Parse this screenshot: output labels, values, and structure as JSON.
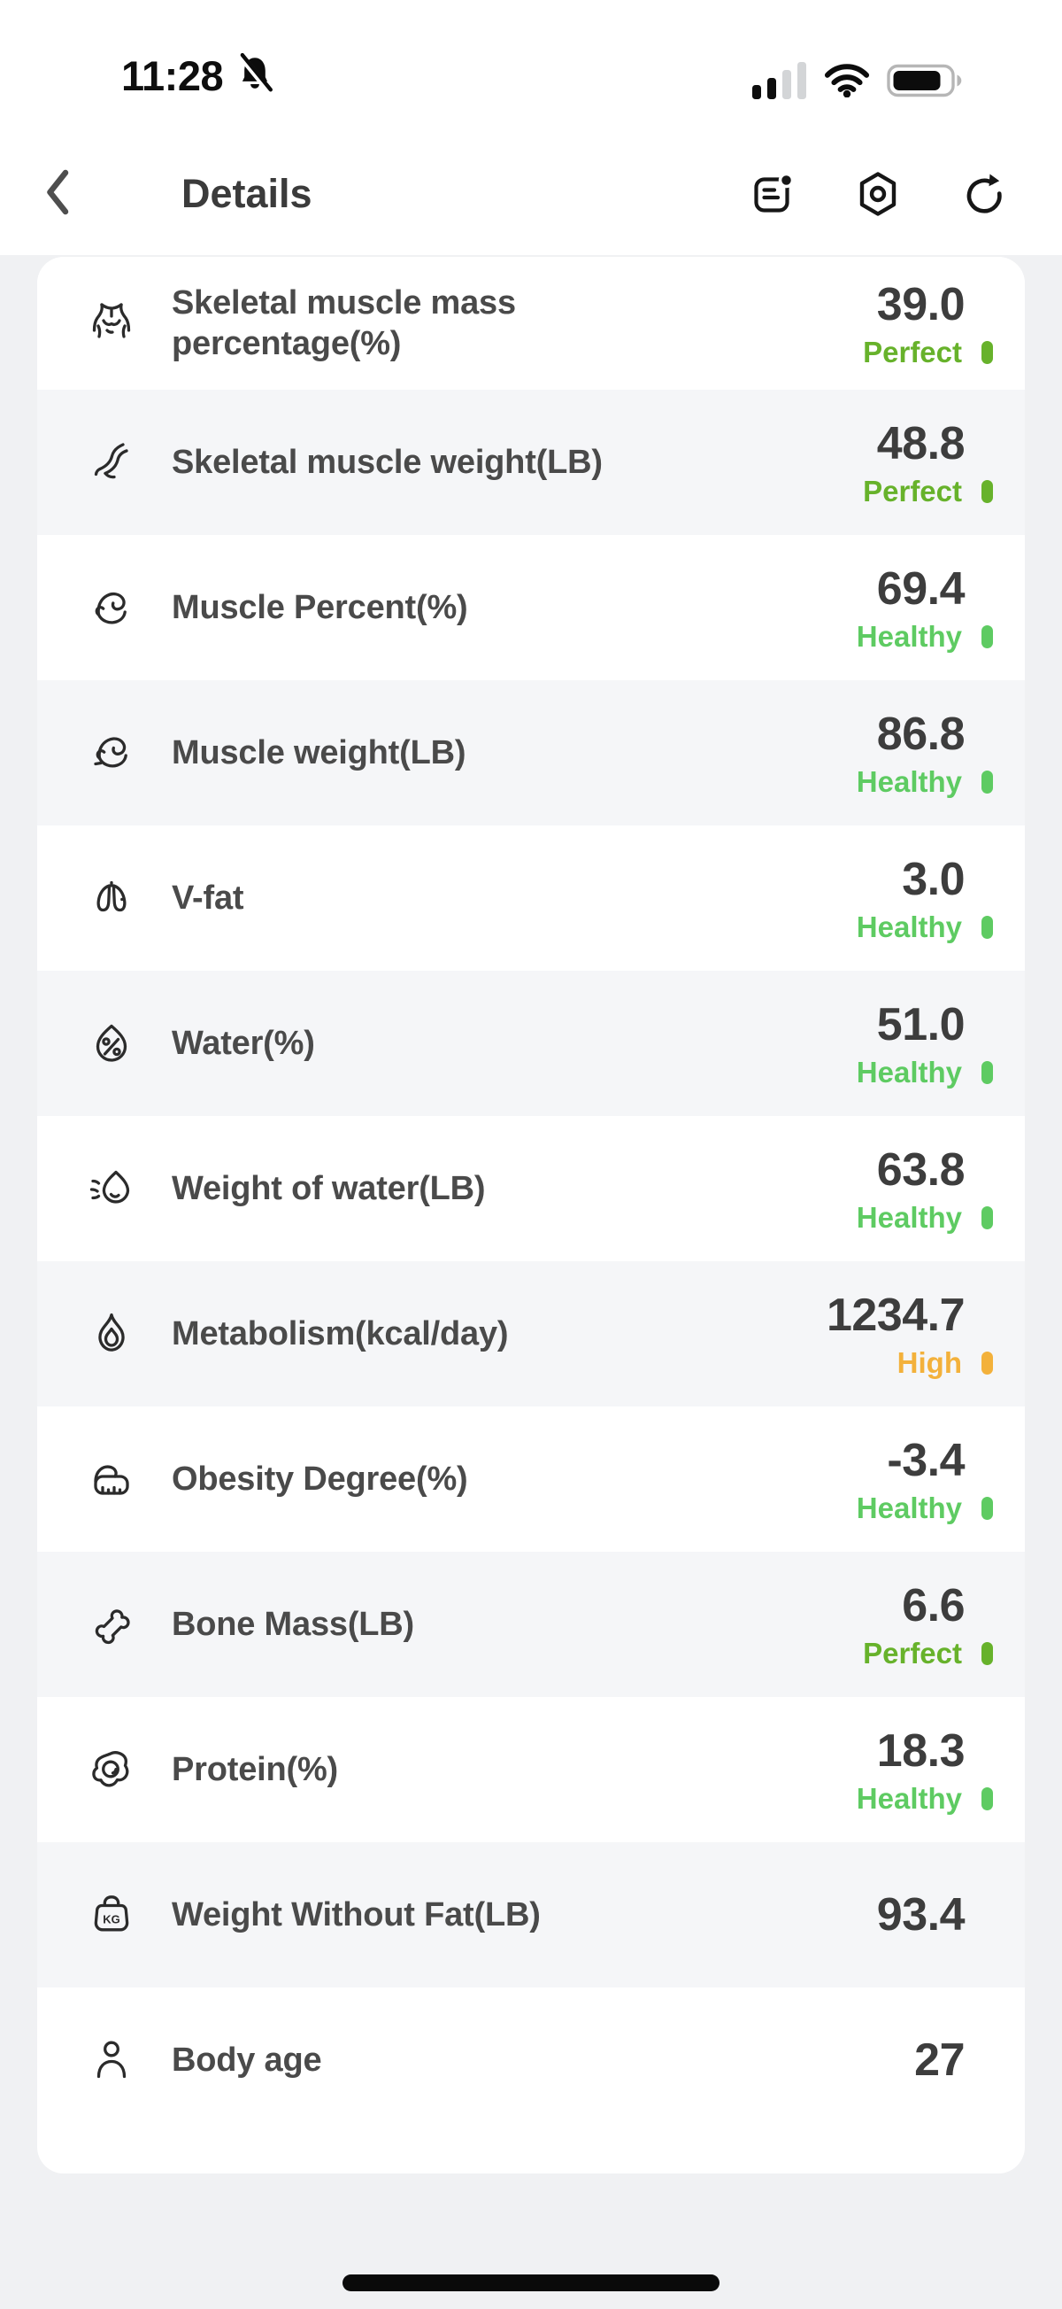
{
  "status_bar": {
    "time": "11:28",
    "muted_icon": "bell-slash-icon",
    "signal_bars_filled": 2,
    "signal_bars_total": 4,
    "wifi_icon": "wifi-icon",
    "battery_icon": "battery-icon",
    "battery_level_percent": 85
  },
  "header": {
    "title": "Details",
    "back_icon": "chevron-left-icon",
    "actions": [
      {
        "icon": "report-note-icon"
      },
      {
        "icon": "settings-nut-icon"
      },
      {
        "icon": "refresh-icon"
      }
    ]
  },
  "colors": {
    "perfect": "#67b22b",
    "healthy": "#5ecb62",
    "high": "#f3b13b",
    "value_text": "#3d3d3d",
    "label_text": "#4a4a4a",
    "row_alt_bg": "#f5f6f8",
    "page_bg": "#f0f1f3"
  },
  "metrics": [
    {
      "icon": "torso-icon",
      "label": "Skeletal muscle mass percentage(%)",
      "value": "39.0",
      "status": "Perfect",
      "status_type": "perfect"
    },
    {
      "icon": "leg-muscle-icon",
      "label": "Skeletal muscle weight(LB)",
      "value": "48.8",
      "status": "Perfect",
      "status_type": "perfect"
    },
    {
      "icon": "bicep-icon",
      "label": "Muscle Percent(%)",
      "value": "69.4",
      "status": "Healthy",
      "status_type": "healthy"
    },
    {
      "icon": "bicep-flex-icon",
      "label": "Muscle weight(LB)",
      "value": "86.8",
      "status": "Healthy",
      "status_type": "healthy"
    },
    {
      "icon": "lungs-icon",
      "label": "V-fat",
      "value": "3.0",
      "status": "Healthy",
      "status_type": "healthy"
    },
    {
      "icon": "water-percent-icon",
      "label": "Water(%)",
      "value": "51.0",
      "status": "Healthy",
      "status_type": "healthy"
    },
    {
      "icon": "water-weight-icon",
      "label": "Weight of water(LB)",
      "value": "63.8",
      "status": "Healthy",
      "status_type": "healthy"
    },
    {
      "icon": "flame-icon",
      "label": "Metabolism(kcal/day)",
      "value": "1234.7",
      "status": "High",
      "status_type": "high"
    },
    {
      "icon": "tape-measure-icon",
      "label": "Obesity Degree(%)",
      "value": "-3.4",
      "status": "Healthy",
      "status_type": "healthy"
    },
    {
      "icon": "bone-icon",
      "label": "Bone Mass(LB)",
      "value": "6.6",
      "status": "Perfect",
      "status_type": "perfect"
    },
    {
      "icon": "fried-egg-icon",
      "label": "Protein(%)",
      "value": "18.3",
      "status": "Healthy",
      "status_type": "healthy"
    },
    {
      "icon": "kg-tag-icon",
      "label": "Weight Without Fat(LB)",
      "value": "93.4",
      "status": null,
      "status_type": null
    },
    {
      "icon": "person-icon",
      "label": "Body age",
      "value": "27",
      "status": null,
      "status_type": null
    }
  ]
}
